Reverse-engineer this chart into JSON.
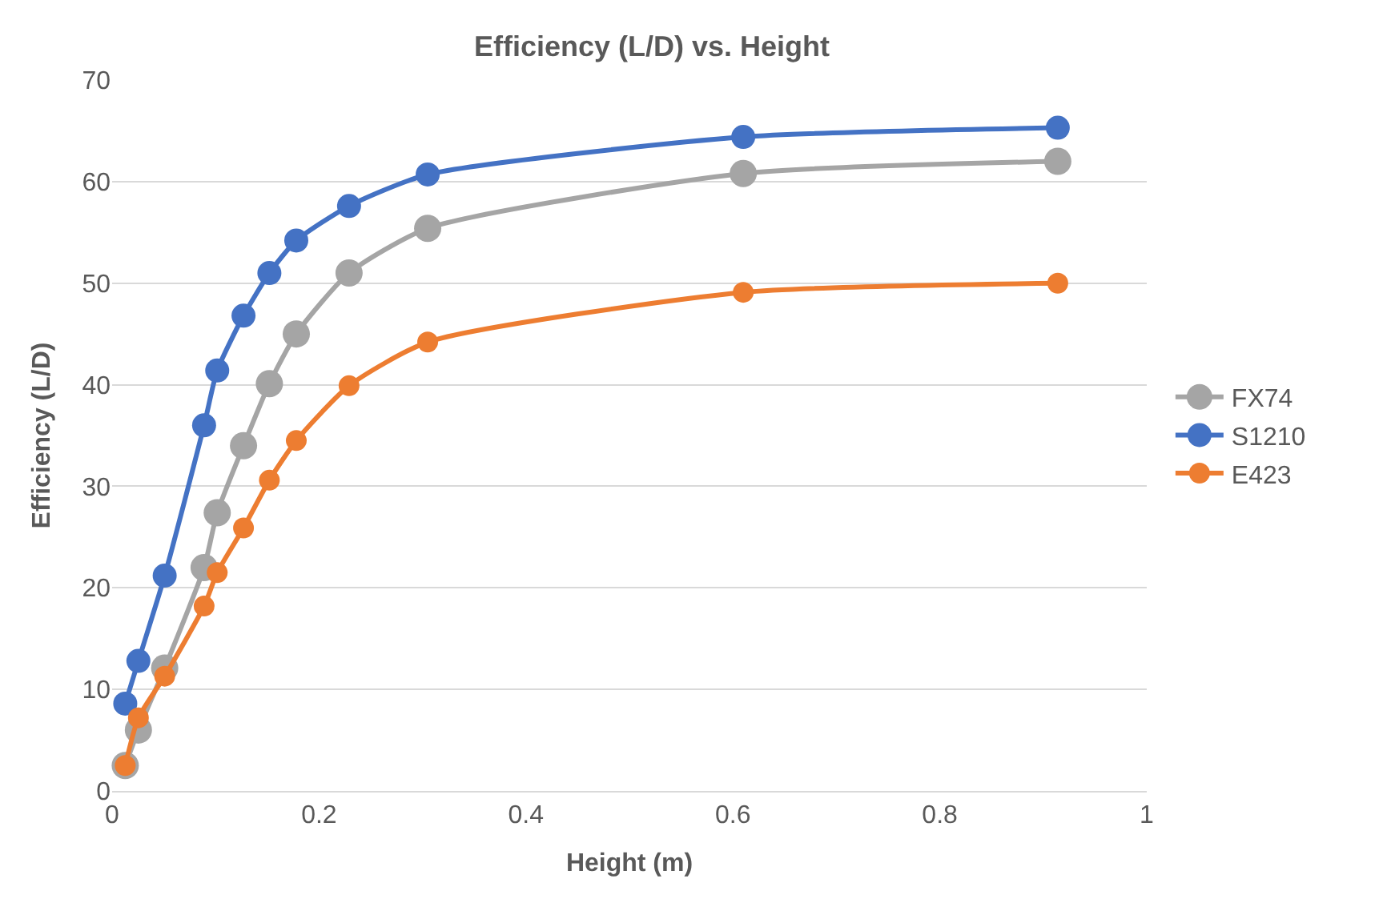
{
  "chart_data": {
    "type": "line",
    "title": "Efficiency (L/D) vs. Height",
    "xlabel": "Height (m)",
    "ylabel": "Efficiency (L/D)",
    "x": [
      0.0127,
      0.0254,
      0.0508,
      0.0889,
      0.1016,
      0.127,
      0.152,
      0.178,
      0.229,
      0.305,
      0.61,
      0.914
    ],
    "series": [
      {
        "name": "FX74",
        "color": "#a5a5a5",
        "values": [
          2.5,
          6,
          12.1,
          22,
          27.4,
          34,
          40.1,
          45,
          51,
          55.4,
          60.8,
          62
        ]
      },
      {
        "name": "S1210",
        "color": "#4472c4",
        "values": [
          8.6,
          12.8,
          21.2,
          36,
          41.4,
          46.8,
          51,
          54.2,
          57.6,
          60.7,
          64.4,
          65.3
        ]
      },
      {
        "name": "E423",
        "color": "#ed7d31",
        "values": [
          2.5,
          7.2,
          11.3,
          18.2,
          21.5,
          25.9,
          30.6,
          34.5,
          39.9,
          44.2,
          49.1,
          50
        ]
      }
    ],
    "xlim": [
      0,
      1
    ],
    "xticks": [
      0,
      0.2,
      0.4,
      0.6,
      0.8,
      1
    ],
    "ylim": [
      0,
      70
    ],
    "yticks": [
      0,
      10,
      20,
      30,
      40,
      50,
      60,
      70
    ],
    "grid": "y",
    "legend": "right",
    "marker": "circle",
    "line_style": "solid"
  }
}
